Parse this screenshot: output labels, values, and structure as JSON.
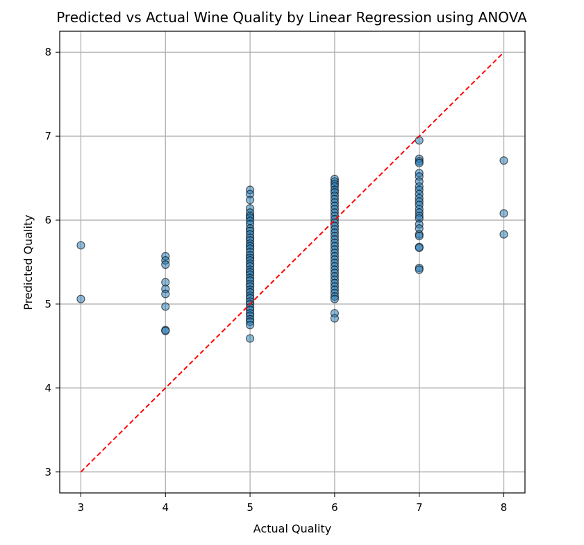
{
  "chart_data": {
    "type": "scatter",
    "title": "Predicted vs Actual Wine Quality by Linear Regression using ANOVA",
    "xlabel": "Actual Quality",
    "ylabel": "Predicted Quality",
    "xlim": [
      2.75,
      8.25
    ],
    "ylim": [
      2.75,
      8.25
    ],
    "xticks": [
      "3",
      "4",
      "5",
      "6",
      "7",
      "8"
    ],
    "yticks": [
      "3",
      "4",
      "5",
      "6",
      "7",
      "8"
    ],
    "grid": true,
    "marker_color": "#1f77b4",
    "marker_edge_color": "#000000",
    "reference_line": {
      "style": "dashed",
      "color": "#ff0000",
      "from": [
        3,
        3
      ],
      "to": [
        8,
        8
      ]
    },
    "series": [
      {
        "points": [
          [
            3,
            5.7
          ],
          [
            3,
            5.06
          ],
          [
            4,
            5.57
          ],
          [
            4,
            5.52
          ],
          [
            4,
            5.47
          ],
          [
            4,
            5.26
          ],
          [
            4,
            5.18
          ],
          [
            4,
            5.12
          ],
          [
            4,
            4.97
          ],
          [
            4,
            4.69
          ],
          [
            4,
            4.68
          ],
          [
            5,
            6.36
          ],
          [
            5,
            6.31
          ],
          [
            5,
            6.24
          ],
          [
            5,
            6.14
          ],
          [
            5,
            6.09
          ],
          [
            5,
            6.05
          ],
          [
            5,
            6.03
          ],
          [
            5,
            5.99
          ],
          [
            5,
            5.95
          ],
          [
            5,
            5.9
          ],
          [
            5,
            5.87
          ],
          [
            5,
            5.83
          ],
          [
            5,
            5.79
          ],
          [
            5,
            5.76
          ],
          [
            5,
            5.72
          ],
          [
            5,
            5.69
          ],
          [
            5,
            5.66
          ],
          [
            5,
            5.62
          ],
          [
            5,
            5.58
          ],
          [
            5,
            5.55
          ],
          [
            5,
            5.52
          ],
          [
            5,
            5.48
          ],
          [
            5,
            5.45
          ],
          [
            5,
            5.41
          ],
          [
            5,
            5.38
          ],
          [
            5,
            5.35
          ],
          [
            5,
            5.31
          ],
          [
            5,
            5.28
          ],
          [
            5,
            5.24
          ],
          [
            5,
            5.21
          ],
          [
            5,
            5.17
          ],
          [
            5,
            5.14
          ],
          [
            5,
            5.1
          ],
          [
            5,
            5.07
          ],
          [
            5,
            5.03
          ],
          [
            5,
            5.0
          ],
          [
            5,
            4.96
          ],
          [
            5,
            4.93
          ],
          [
            5,
            4.89
          ],
          [
            5,
            4.86
          ],
          [
            5,
            4.82
          ],
          [
            5,
            4.79
          ],
          [
            5,
            4.75
          ],
          [
            5,
            4.59
          ],
          [
            6,
            6.49
          ],
          [
            6,
            6.46
          ],
          [
            6,
            6.43
          ],
          [
            6,
            6.4
          ],
          [
            6,
            6.36
          ],
          [
            6,
            6.33
          ],
          [
            6,
            6.29
          ],
          [
            6,
            6.25
          ],
          [
            6,
            6.21
          ],
          [
            6,
            6.17
          ],
          [
            6,
            6.13
          ],
          [
            6,
            6.09
          ],
          [
            6,
            6.05
          ],
          [
            6,
            6.01
          ],
          [
            6,
            5.97
          ],
          [
            6,
            5.93
          ],
          [
            6,
            5.89
          ],
          [
            6,
            5.85
          ],
          [
            6,
            5.81
          ],
          [
            6,
            5.77
          ],
          [
            6,
            5.73
          ],
          [
            6,
            5.69
          ],
          [
            6,
            5.65
          ],
          [
            6,
            5.61
          ],
          [
            6,
            5.57
          ],
          [
            6,
            5.53
          ],
          [
            6,
            5.49
          ],
          [
            6,
            5.45
          ],
          [
            6,
            5.41
          ],
          [
            6,
            5.37
          ],
          [
            6,
            5.33
          ],
          [
            6,
            5.29
          ],
          [
            6,
            5.25
          ],
          [
            6,
            5.21
          ],
          [
            6,
            5.17
          ],
          [
            6,
            5.13
          ],
          [
            6,
            5.09
          ],
          [
            6,
            5.06
          ],
          [
            6,
            4.89
          ],
          [
            6,
            4.83
          ],
          [
            7,
            6.95
          ],
          [
            7,
            6.73
          ],
          [
            7,
            6.7
          ],
          [
            7,
            6.68
          ],
          [
            7,
            6.56
          ],
          [
            7,
            6.52
          ],
          [
            7,
            6.46
          ],
          [
            7,
            6.4
          ],
          [
            7,
            6.36
          ],
          [
            7,
            6.31
          ],
          [
            7,
            6.26
          ],
          [
            7,
            6.22
          ],
          [
            7,
            6.18
          ],
          [
            7,
            6.13
          ],
          [
            7,
            6.09
          ],
          [
            7,
            6.05
          ],
          [
            7,
            6.02
          ],
          [
            7,
            5.95
          ],
          [
            7,
            5.9
          ],
          [
            7,
            5.83
          ],
          [
            7,
            5.81
          ],
          [
            7,
            5.68
          ],
          [
            7,
            5.67
          ],
          [
            7,
            5.43
          ],
          [
            7,
            5.41
          ],
          [
            8,
            6.71
          ],
          [
            8,
            6.08
          ],
          [
            8,
            5.83
          ]
        ]
      }
    ]
  }
}
